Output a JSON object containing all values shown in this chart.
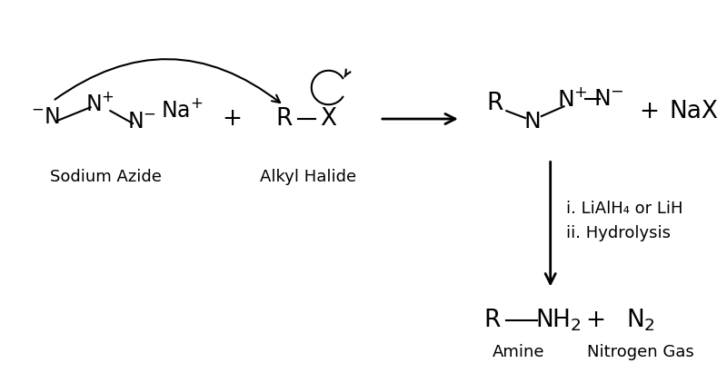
{
  "bg_color": "#ffffff",
  "figsize": [
    8.0,
    4.11
  ],
  "dpi": 100,
  "sodium_azide_label": "Sodium Azide",
  "alkyl_halide_label": "Alkyl Halide",
  "product1_label": "NaX",
  "reagent_line1": "i. LiAlH₄ or LiH",
  "reagent_line2": "ii. Hydrolysis",
  "amine_label": "Amine",
  "n2_label": "Nitrogen Gas",
  "lw": 1.5,
  "fs_main": 17,
  "fs_label": 13
}
